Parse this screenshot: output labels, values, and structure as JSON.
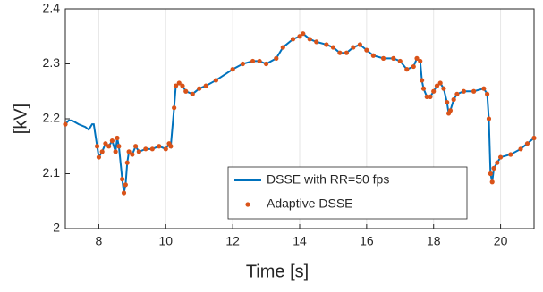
{
  "chart_data": {
    "type": "line",
    "xlabel": "Time [s]",
    "ylabel": "[kV]",
    "x": [
      7.0,
      7.1,
      7.2,
      7.4,
      7.6,
      7.7,
      7.8,
      7.85,
      7.95,
      8.0,
      8.1,
      8.2,
      8.3,
      8.4,
      8.5,
      8.55,
      8.6,
      8.7,
      8.75,
      8.8,
      8.85,
      8.9,
      9.0,
      9.1,
      9.2,
      9.4,
      9.6,
      9.8,
      10.0,
      10.1,
      10.15,
      10.25,
      10.3,
      10.4,
      10.5,
      10.6,
      10.8,
      11.0,
      11.2,
      11.5,
      12.0,
      12.3,
      12.6,
      12.8,
      13.0,
      13.3,
      13.5,
      13.8,
      14.0,
      14.1,
      14.3,
      14.5,
      14.8,
      15.0,
      15.2,
      15.4,
      15.6,
      15.8,
      16.0,
      16.2,
      16.5,
      16.8,
      17.0,
      17.2,
      17.4,
      17.5,
      17.6,
      17.65,
      17.7,
      17.8,
      17.9,
      18.0,
      18.1,
      18.2,
      18.3,
      18.4,
      18.45,
      18.5,
      18.6,
      18.7,
      18.9,
      19.2,
      19.5,
      19.6,
      19.65,
      19.7,
      19.75,
      19.8,
      19.9,
      20.0,
      20.3,
      20.6,
      20.8,
      21.0
    ],
    "series": [
      {
        "name": "DSSE with RR=50 fps",
        "type": "line",
        "color": "#0072BD",
        "values": [
          2.19,
          2.197,
          2.197,
          2.19,
          2.185,
          2.18,
          2.19,
          2.19,
          2.15,
          2.13,
          2.14,
          2.155,
          2.15,
          2.16,
          2.14,
          2.165,
          2.15,
          2.09,
          2.065,
          2.08,
          2.12,
          2.14,
          2.135,
          2.15,
          2.14,
          2.145,
          2.145,
          2.15,
          2.145,
          2.155,
          2.15,
          2.22,
          2.26,
          2.265,
          2.26,
          2.25,
          2.245,
          2.255,
          2.26,
          2.27,
          2.29,
          2.3,
          2.305,
          2.305,
          2.3,
          2.31,
          2.33,
          2.345,
          2.35,
          2.355,
          2.345,
          2.34,
          2.335,
          2.33,
          2.32,
          2.32,
          2.33,
          2.335,
          2.325,
          2.315,
          2.31,
          2.31,
          2.305,
          2.29,
          2.295,
          2.31,
          2.305,
          2.27,
          2.255,
          2.24,
          2.24,
          2.25,
          2.26,
          2.265,
          2.255,
          2.23,
          2.21,
          2.215,
          2.235,
          2.245,
          2.25,
          2.25,
          2.255,
          2.245,
          2.2,
          2.1,
          2.085,
          2.11,
          2.12,
          2.13,
          2.135,
          2.145,
          2.155,
          2.165
        ]
      },
      {
        "name": "Adaptive DSSE",
        "type": "scatter",
        "color": "#D95319",
        "values": [
          2.19,
          null,
          null,
          null,
          null,
          null,
          null,
          null,
          2.15,
          2.13,
          2.14,
          2.155,
          2.15,
          2.16,
          2.14,
          2.165,
          2.15,
          2.09,
          2.065,
          2.08,
          2.12,
          2.14,
          2.135,
          2.15,
          2.14,
          2.145,
          2.145,
          2.15,
          2.145,
          2.155,
          2.15,
          2.22,
          2.26,
          2.265,
          2.26,
          2.25,
          2.245,
          2.255,
          2.26,
          2.27,
          2.29,
          2.3,
          2.305,
          2.305,
          2.3,
          2.31,
          2.33,
          2.345,
          2.35,
          2.355,
          2.345,
          2.34,
          2.335,
          2.33,
          2.32,
          2.32,
          2.33,
          2.335,
          2.325,
          2.315,
          2.31,
          2.31,
          2.305,
          2.29,
          2.295,
          2.31,
          2.305,
          2.27,
          2.255,
          2.24,
          2.24,
          2.25,
          2.26,
          2.265,
          2.255,
          2.23,
          2.21,
          2.215,
          2.235,
          2.245,
          2.25,
          2.25,
          2.255,
          2.245,
          2.2,
          2.1,
          2.085,
          2.11,
          2.12,
          2.13,
          2.135,
          2.145,
          2.155,
          2.165
        ]
      }
    ],
    "xlim": [
      7,
      21
    ],
    "xticks": [
      8,
      10,
      12,
      14,
      16,
      18,
      20
    ],
    "ylim": [
      2,
      2.4
    ],
    "yticks": [
      2,
      2.1,
      2.2,
      2.3,
      2.4
    ],
    "xgrid": true,
    "legend_loc": "lower right"
  }
}
